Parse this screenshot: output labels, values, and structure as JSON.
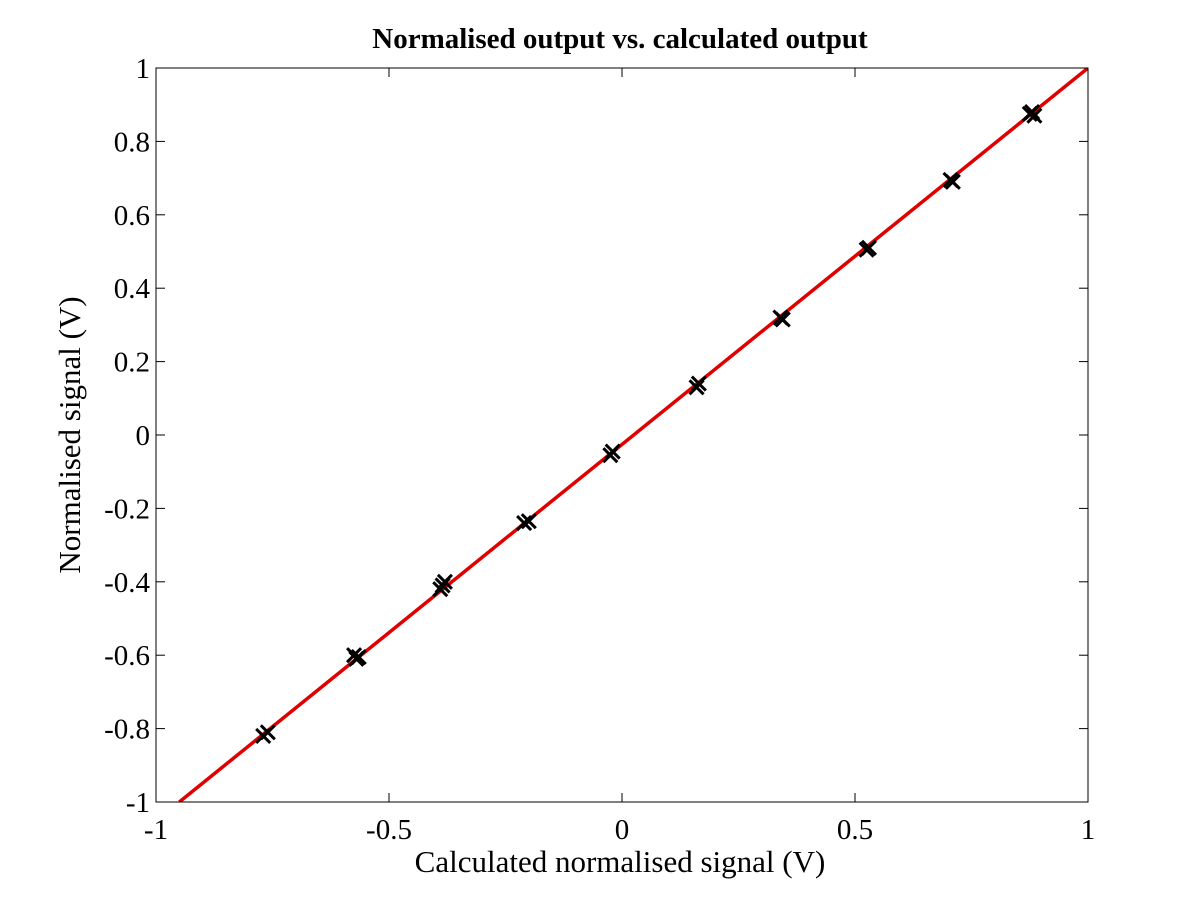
{
  "chart_data": {
    "type": "scatter",
    "title": "Normalised output vs. calculated output",
    "xlabel": "Calculated normalised signal (V)",
    "ylabel": "Normalised signal (V)",
    "xlim": [
      -1,
      1
    ],
    "ylim": [
      -1,
      1
    ],
    "xticks": [
      "-1",
      "-0.5",
      "0",
      "0.5",
      "1"
    ],
    "yticks": [
      "1",
      "0.8",
      "0.6",
      "0.4",
      "0.2",
      "0",
      "-0.2",
      "-0.4",
      "-0.6",
      "-0.8",
      "-1"
    ],
    "grid": false,
    "colors": {
      "points": "#000000",
      "fit_line": "#e00000"
    },
    "marker": "x",
    "points": [
      {
        "x": -0.77,
        "y": -0.82
      },
      {
        "x": -0.76,
        "y": -0.81
      },
      {
        "x": -0.575,
        "y": -0.6
      },
      {
        "x": -0.57,
        "y": -0.61
      },
      {
        "x": -0.565,
        "y": -0.605
      },
      {
        "x": -0.39,
        "y": -0.42
      },
      {
        "x": -0.385,
        "y": -0.41
      },
      {
        "x": -0.38,
        "y": -0.4
      },
      {
        "x": -0.21,
        "y": -0.24
      },
      {
        "x": -0.2,
        "y": -0.235
      },
      {
        "x": -0.025,
        "y": -0.055
      },
      {
        "x": -0.02,
        "y": -0.045
      },
      {
        "x": 0.16,
        "y": 0.13
      },
      {
        "x": 0.165,
        "y": 0.14
      },
      {
        "x": 0.34,
        "y": 0.32
      },
      {
        "x": 0.345,
        "y": 0.315
      },
      {
        "x": 0.525,
        "y": 0.505
      },
      {
        "x": 0.53,
        "y": 0.51
      },
      {
        "x": 0.705,
        "y": 0.695
      },
      {
        "x": 0.71,
        "y": 0.69
      },
      {
        "x": 0.875,
        "y": 0.875
      },
      {
        "x": 0.88,
        "y": 0.88
      },
      {
        "x": 0.885,
        "y": 0.87
      }
    ],
    "fit_line": {
      "x": [
        -0.95,
        1.0
      ],
      "y": [
        -1.0,
        1.0
      ]
    }
  }
}
